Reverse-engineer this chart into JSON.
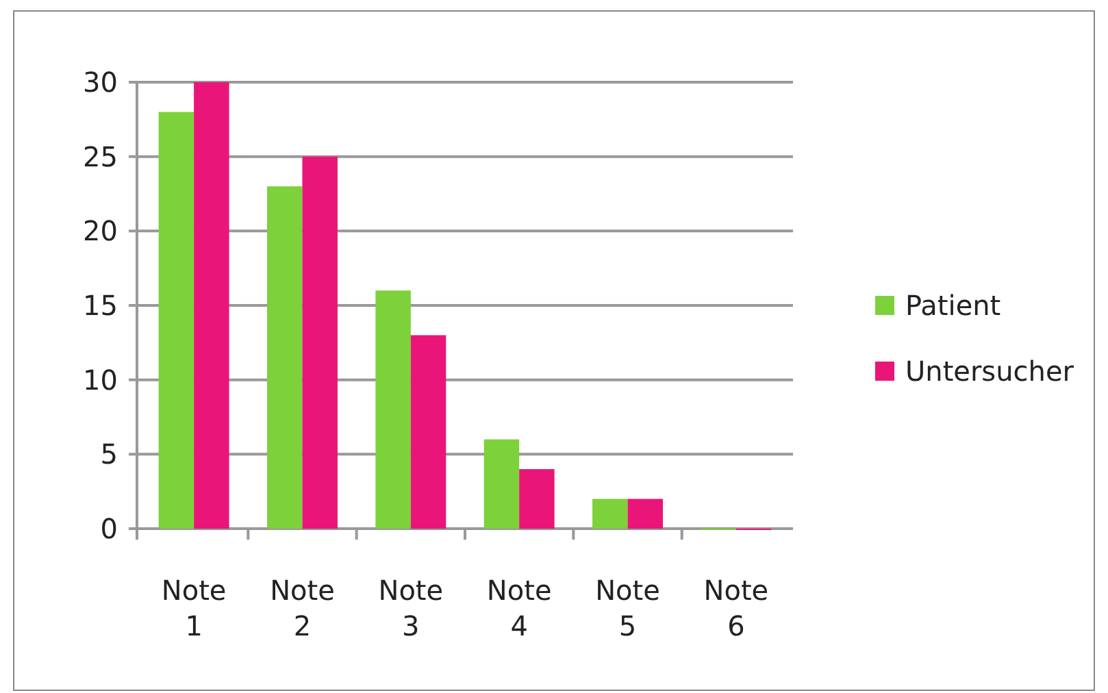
{
  "chart_data": {
    "type": "bar",
    "categories": [
      "Note 1",
      "Note 2",
      "Note 3",
      "Note 4",
      "Note 5",
      "Note 6"
    ],
    "series": [
      {
        "name": "Patient",
        "color": "#7dd13b",
        "values": [
          28,
          23,
          16,
          6,
          2,
          0
        ]
      },
      {
        "name": "Untersucher",
        "color": "#ea1578",
        "values": [
          30,
          25,
          13,
          4,
          2,
          0
        ]
      }
    ],
    "ylim": [
      0,
      30
    ],
    "yticks": [
      0,
      5,
      10,
      15,
      20,
      25,
      30
    ],
    "grid": "y",
    "legend": "right"
  }
}
